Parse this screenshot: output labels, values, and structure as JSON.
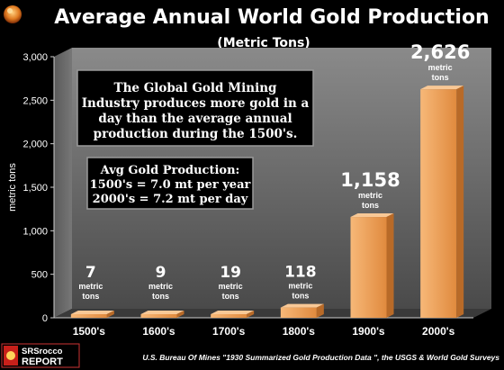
{
  "chart_data": {
    "type": "bar",
    "title": "Average Annual World Gold Production",
    "subtitle": "(Metric Tons)",
    "ylabel": "metric tons",
    "xlabel": "",
    "categories": [
      "1500's",
      "1600's",
      "1700's",
      "1800's",
      "1900's",
      "2000's"
    ],
    "values": [
      7,
      9,
      19,
      118,
      1158,
      2626
    ],
    "value_labels": [
      "7",
      "9",
      "19",
      "118",
      "1,158",
      "2,626"
    ],
    "unit_line1": "metric",
    "unit_line2": "tons",
    "ylim": [
      0,
      3000
    ],
    "yticks": [
      0,
      500,
      1000,
      1500,
      2000,
      2500,
      3000
    ],
    "ytick_labels": [
      "0",
      "500",
      "1,000",
      "1,500",
      "2,000",
      "2,500",
      "3,000"
    ],
    "grid": false,
    "bar_color": "#F0A055",
    "wall_color": "#6E6E6E"
  },
  "annotations": {
    "box1_lines": [
      "The Global Gold Mining",
      "Industry produces more gold in a",
      "day than the average annual",
      "production during the 1500's."
    ],
    "box2_lines": [
      "Avg Gold Production:",
      "1500's = 7.0 mt per year",
      "2000's = 7.2 mt per day"
    ]
  },
  "footer": {
    "logo_top": "SRSrocco",
    "logo_bottom": "REPORT",
    "source": "U.S. Bureau Of Mines \"1930 Summarized Gold Production Data \", the USGS & World Gold Surveys"
  },
  "colors": {
    "background": "#000000",
    "text": "#FFFFFF",
    "accent": "#F0A055"
  }
}
